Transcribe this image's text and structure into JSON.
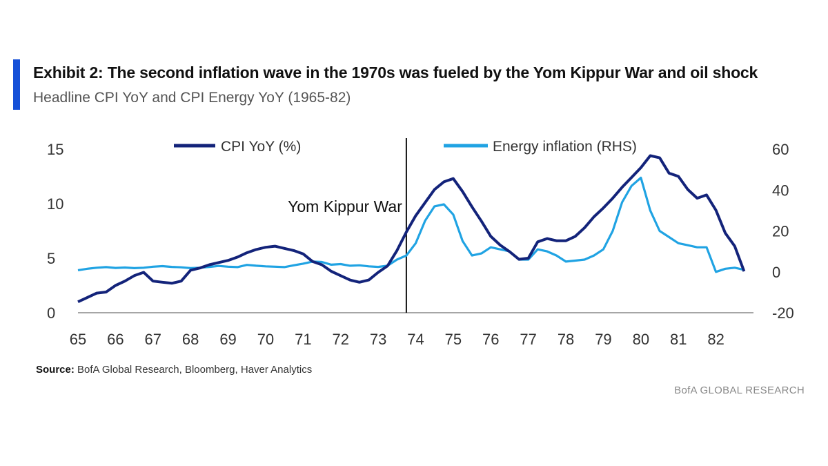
{
  "colors": {
    "accent": "#1550d8",
    "cpi": "#13237a",
    "energy": "#20a3e3"
  },
  "header": {
    "title": "Exhibit 2: The second inflation wave in the 1970s was fueled by the Yom Kippur War and oil shock",
    "subtitle": "Headline CPI YoY and CPI Energy YoY (1965-82)"
  },
  "footer": {
    "source_label": "Source:",
    "source_text": " BofA Global Research, Bloomberg, Haver Analytics",
    "brand": "BofA GLOBAL RESEARCH"
  },
  "chart_data": {
    "type": "line",
    "title": "Headline CPI YoY and CPI Energy YoY (1965-82)",
    "x_ticks": [
      "65",
      "66",
      "67",
      "68",
      "69",
      "70",
      "71",
      "72",
      "73",
      "74",
      "75",
      "76",
      "77",
      "78",
      "79",
      "80",
      "81",
      "82"
    ],
    "xlim": [
      65.0,
      83.0
    ],
    "y_left_ticks": [
      "0",
      "5",
      "10",
      "15"
    ],
    "y_left_lim": [
      0,
      15
    ],
    "y_right_ticks": [
      "-20",
      "0",
      "20",
      "40",
      "60"
    ],
    "y_right_lim": [
      -20,
      60
    ],
    "annotation": {
      "label": "Yom Kippur War",
      "x": 73.75
    },
    "legend": {
      "position": "top",
      "entries": [
        "CPI YoY (%)",
        "Energy inflation (RHS)"
      ]
    },
    "series": [
      {
        "name": "CPI YoY (%)",
        "axis": "left",
        "x": [
          65.0,
          65.25,
          65.5,
          65.75,
          66.0,
          66.25,
          66.5,
          66.75,
          67.0,
          67.25,
          67.5,
          67.75,
          68.0,
          68.25,
          68.5,
          68.75,
          69.0,
          69.25,
          69.5,
          69.75,
          70.0,
          70.25,
          70.5,
          70.75,
          71.0,
          71.25,
          71.5,
          71.75,
          72.0,
          72.25,
          72.5,
          72.75,
          73.0,
          73.25,
          73.5,
          73.75,
          74.0,
          74.25,
          74.5,
          74.75,
          75.0,
          75.25,
          75.5,
          75.75,
          76.0,
          76.25,
          76.5,
          76.75,
          77.0,
          77.25,
          77.5,
          77.75,
          78.0,
          78.25,
          78.5,
          78.75,
          79.0,
          79.25,
          79.5,
          79.75,
          80.0,
          80.25,
          80.5,
          80.75,
          81.0,
          81.25,
          81.5,
          81.75,
          82.0,
          82.25,
          82.5,
          82.75
        ],
        "values": [
          1.0,
          1.4,
          1.8,
          1.9,
          2.5,
          2.9,
          3.4,
          3.7,
          2.9,
          2.8,
          2.7,
          2.9,
          3.9,
          4.1,
          4.4,
          4.6,
          4.8,
          5.1,
          5.5,
          5.8,
          6.0,
          6.1,
          5.9,
          5.7,
          5.4,
          4.7,
          4.4,
          3.8,
          3.4,
          3.0,
          2.8,
          3.0,
          3.7,
          4.3,
          5.7,
          7.4,
          8.9,
          10.1,
          11.3,
          12.0,
          12.3,
          11.1,
          9.7,
          8.4,
          7.0,
          6.2,
          5.6,
          4.9,
          5.0,
          6.5,
          6.8,
          6.6,
          6.6,
          7.0,
          7.8,
          8.8,
          9.6,
          10.5,
          11.5,
          12.4,
          13.3,
          14.4,
          14.2,
          12.8,
          12.5,
          11.3,
          10.5,
          10.8,
          9.4,
          7.3,
          6.1,
          3.8
        ]
      },
      {
        "name": "Energy inflation (RHS)",
        "axis": "right",
        "x": [
          65.0,
          65.25,
          65.5,
          65.75,
          66.0,
          66.25,
          66.5,
          66.75,
          67.0,
          67.25,
          67.5,
          67.75,
          68.0,
          68.25,
          68.5,
          68.75,
          69.0,
          69.25,
          69.5,
          69.75,
          70.0,
          70.25,
          70.5,
          70.75,
          71.0,
          71.25,
          71.5,
          71.75,
          72.0,
          72.25,
          72.5,
          72.75,
          73.0,
          73.25,
          73.5,
          73.75,
          74.0,
          74.25,
          74.5,
          74.75,
          75.0,
          75.25,
          75.5,
          75.75,
          76.0,
          76.25,
          76.5,
          76.75,
          77.0,
          77.25,
          77.5,
          77.75,
          78.0,
          78.25,
          78.5,
          78.75,
          79.0,
          79.25,
          79.5,
          79.75,
          80.0,
          80.25,
          80.5,
          80.75,
          81.0,
          81.25,
          81.5,
          81.75,
          82.0,
          82.25,
          82.5,
          82.75
        ],
        "values": [
          0.8,
          1.5,
          2.0,
          2.3,
          1.9,
          2.1,
          1.8,
          2.0,
          2.5,
          2.8,
          2.4,
          2.2,
          1.8,
          2.0,
          2.4,
          2.9,
          2.5,
          2.3,
          3.4,
          3.0,
          2.7,
          2.5,
          2.3,
          3.2,
          4.0,
          5.0,
          4.8,
          3.5,
          3.8,
          3.0,
          3.2,
          2.7,
          2.4,
          3.0,
          6.0,
          8.0,
          14.0,
          25.0,
          32.0,
          33.0,
          28.0,
          15.0,
          8.0,
          9.0,
          12.0,
          11.0,
          10.0,
          6.0,
          6.0,
          11.0,
          10.0,
          8.0,
          5.0,
          5.5,
          6.0,
          8.0,
          11.0,
          20.0,
          34.0,
          42.0,
          46.0,
          30.0,
          20.0,
          17.0,
          14.0,
          13.0,
          12.0,
          12.0,
          0.0,
          1.5,
          2.0,
          1.0
        ]
      }
    ]
  }
}
